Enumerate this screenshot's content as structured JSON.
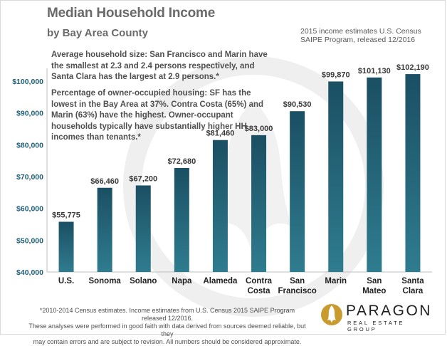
{
  "header": {
    "title": "Median Household Income",
    "subtitle": "by Bay Area County",
    "source_line1": "2015 income estimates  U.S. Census",
    "source_line2": "SAIPE Program, released 12/2016"
  },
  "notes": {
    "household_size": "Average household size: San Francisco and Marin have the smallest at 2.3 and 2.4 persons respectively, and Santa Clara has the largest at 2.9 persons.*",
    "owner_occupied": "Percentage of owner-occupied housing: SF has the lowest in the Bay Area at 37%. Contra Costa (65%) and Marin (63%) have the highest. Owner-occupant households typically have substantially higher HH incomes  than tenants.*"
  },
  "footnote": {
    "line1": "*2010-2014 Census estimates. Income estimates from U.S. Census 2015 SAIPE  Program  released 12/2016.",
    "line2": "These analyses were performed in good faith with data derived from sources deemed reliable, but they",
    "line3": "may contain errors and are subject to revision.  All numbers should be considered approximate."
  },
  "logo": {
    "word": "PARAGON",
    "sub": "REAL ESTATE GROUP",
    "icon": "paragon-flame-logo-icon"
  },
  "colors": {
    "bar_top": "#1b4f63",
    "bar_bottom": "#2f7c8f",
    "axis_labels": "#1f5f78",
    "watermark": "#ececec"
  },
  "chart_data": {
    "type": "bar",
    "title": "Median Household Income",
    "subtitle": "by Bay Area County",
    "categories": [
      [
        "U.S."
      ],
      [
        "Sonoma"
      ],
      [
        "Solano"
      ],
      [
        "Napa"
      ],
      [
        "Alameda"
      ],
      [
        "Contra",
        "Costa"
      ],
      [
        "San",
        "Francisco"
      ],
      [
        "Marin"
      ],
      [
        "San",
        "Mateo"
      ],
      [
        "Santa",
        "Clara"
      ]
    ],
    "values": [
      55775,
      66460,
      67200,
      72680,
      81460,
      83000,
      90530,
      99870,
      101130,
      102190
    ],
    "data_labels": [
      "$55,775",
      "$66,460",
      "$67,200",
      "$72,680",
      "$81,460",
      "$83,000",
      "$90,530",
      "$99,870",
      "$101,130",
      "$102,190"
    ],
    "yticks": [
      40000,
      50000,
      60000,
      70000,
      80000,
      90000,
      100000
    ],
    "ytick_labels": [
      "$40,000",
      "$50,000",
      "$60,000",
      "$70,000",
      "$80,000",
      "$90,000",
      "$100,000"
    ],
    "ylim": [
      40000,
      104000
    ],
    "grid": false,
    "legend": "none"
  }
}
